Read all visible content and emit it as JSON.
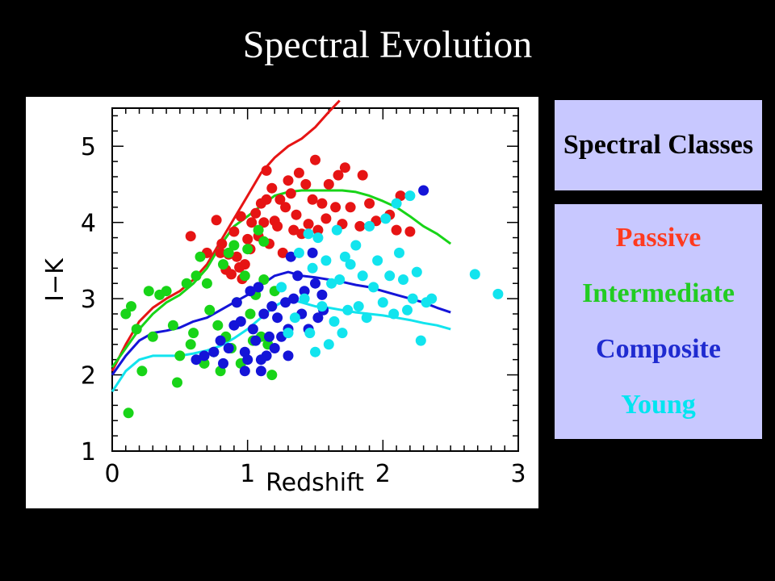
{
  "slide": {
    "title": "Spectral Evolution"
  },
  "legend": {
    "header": "Spectral Classes",
    "items": [
      {
        "label": "Passive",
        "color": "#ff3a1f"
      },
      {
        "label": "Intermediate",
        "color": "#22cc22"
      },
      {
        "label": "Composite",
        "color": "#1f2bd0"
      },
      {
        "label": "Young",
        "color": "#00e5f0"
      }
    ]
  },
  "chart_data": {
    "type": "scatter",
    "xlabel": "Redshift",
    "ylabel": "I−K",
    "xlim": [
      0,
      3
    ],
    "ylim": [
      1,
      5.5
    ],
    "xticks": [
      0,
      1,
      2,
      3
    ],
    "yticks": [
      1,
      2,
      3,
      4,
      5
    ],
    "colors": {
      "Passive": "#e61414",
      "Intermediate": "#18d418",
      "Composite": "#1414d8",
      "Young": "#12e4ee"
    },
    "series": [
      {
        "name": "Passive",
        "points": [
          [
            0.77,
            4.03
          ],
          [
            0.8,
            3.6
          ],
          [
            0.81,
            3.72
          ],
          [
            0.84,
            3.38
          ],
          [
            0.86,
            3.58
          ],
          [
            0.88,
            3.32
          ],
          [
            0.9,
            3.88
          ],
          [
            0.92,
            3.55
          ],
          [
            0.94,
            3.41
          ],
          [
            0.96,
            3.26
          ],
          [
            0.98,
            3.45
          ],
          [
            1.0,
            3.78
          ],
          [
            1.02,
            3.65
          ],
          [
            1.03,
            4.0
          ],
          [
            1.06,
            4.12
          ],
          [
            1.08,
            3.82
          ],
          [
            1.1,
            4.25
          ],
          [
            1.12,
            4.0
          ],
          [
            1.14,
            4.3
          ],
          [
            1.16,
            3.72
          ],
          [
            1.18,
            4.45
          ],
          [
            1.2,
            4.02
          ],
          [
            1.22,
            3.95
          ],
          [
            1.24,
            4.3
          ],
          [
            1.26,
            3.6
          ],
          [
            1.28,
            4.2
          ],
          [
            1.3,
            4.55
          ],
          [
            1.32,
            4.38
          ],
          [
            1.34,
            3.9
          ],
          [
            1.36,
            4.1
          ],
          [
            1.38,
            4.65
          ],
          [
            1.4,
            3.85
          ],
          [
            1.43,
            4.5
          ],
          [
            1.45,
            3.98
          ],
          [
            1.48,
            4.3
          ],
          [
            1.5,
            4.82
          ],
          [
            1.52,
            3.9
          ],
          [
            1.55,
            4.25
          ],
          [
            1.58,
            4.05
          ],
          [
            1.6,
            4.5
          ],
          [
            1.65,
            4.2
          ],
          [
            1.7,
            3.98
          ],
          [
            1.76,
            4.2
          ],
          [
            1.83,
            3.95
          ],
          [
            1.9,
            4.25
          ],
          [
            1.95,
            4.02
          ],
          [
            2.05,
            4.1
          ],
          [
            2.1,
            3.9
          ],
          [
            2.13,
            4.35
          ],
          [
            2.2,
            3.88
          ],
          [
            1.14,
            4.68
          ],
          [
            1.67,
            4.62
          ],
          [
            1.85,
            4.62
          ],
          [
            0.58,
            3.82
          ],
          [
            0.7,
            3.6
          ],
          [
            0.95,
            4.08
          ],
          [
            1.72,
            4.72
          ]
        ]
      },
      {
        "name": "Intermediate",
        "points": [
          [
            0.12,
            1.5
          ],
          [
            0.1,
            2.8
          ],
          [
            0.14,
            2.9
          ],
          [
            0.18,
            2.6
          ],
          [
            0.22,
            2.05
          ],
          [
            0.27,
            3.1
          ],
          [
            0.3,
            2.5
          ],
          [
            0.35,
            3.05
          ],
          [
            0.4,
            3.1
          ],
          [
            0.45,
            2.65
          ],
          [
            0.48,
            1.9
          ],
          [
            0.5,
            2.25
          ],
          [
            0.55,
            3.2
          ],
          [
            0.58,
            2.4
          ],
          [
            0.6,
            2.55
          ],
          [
            0.62,
            3.3
          ],
          [
            0.65,
            3.55
          ],
          [
            0.68,
            2.15
          ],
          [
            0.7,
            3.2
          ],
          [
            0.72,
            2.85
          ],
          [
            0.75,
            2.3
          ],
          [
            0.78,
            2.65
          ],
          [
            0.8,
            2.05
          ],
          [
            0.82,
            3.45
          ],
          [
            0.84,
            2.5
          ],
          [
            0.86,
            3.6
          ],
          [
            0.88,
            2.35
          ],
          [
            0.9,
            3.7
          ],
          [
            0.92,
            2.95
          ],
          [
            0.95,
            2.15
          ],
          [
            0.98,
            3.3
          ],
          [
            1.0,
            3.65
          ],
          [
            1.02,
            2.8
          ],
          [
            1.04,
            2.45
          ],
          [
            1.06,
            3.05
          ],
          [
            1.08,
            3.9
          ],
          [
            1.1,
            2.5
          ],
          [
            1.12,
            3.25
          ],
          [
            1.15,
            2.4
          ],
          [
            1.18,
            2.0
          ],
          [
            1.2,
            3.1
          ],
          [
            1.12,
            3.75
          ]
        ]
      },
      {
        "name": "Composite",
        "points": [
          [
            0.62,
            2.2
          ],
          [
            0.68,
            2.25
          ],
          [
            0.75,
            2.3
          ],
          [
            0.8,
            2.45
          ],
          [
            0.82,
            2.15
          ],
          [
            0.86,
            2.35
          ],
          [
            0.9,
            2.65
          ],
          [
            0.92,
            2.95
          ],
          [
            0.95,
            2.7
          ],
          [
            0.98,
            2.3
          ],
          [
            1.0,
            2.2
          ],
          [
            1.02,
            3.1
          ],
          [
            1.04,
            2.6
          ],
          [
            1.06,
            2.45
          ],
          [
            1.08,
            3.15
          ],
          [
            1.1,
            2.2
          ],
          [
            1.12,
            2.8
          ],
          [
            1.14,
            2.25
          ],
          [
            1.16,
            2.5
          ],
          [
            1.18,
            2.9
          ],
          [
            1.2,
            2.35
          ],
          [
            1.22,
            2.75
          ],
          [
            1.25,
            2.5
          ],
          [
            1.28,
            2.95
          ],
          [
            1.3,
            2.6
          ],
          [
            1.32,
            3.55
          ],
          [
            1.34,
            3.0
          ],
          [
            1.37,
            3.3
          ],
          [
            1.4,
            2.8
          ],
          [
            1.42,
            3.1
          ],
          [
            1.45,
            2.6
          ],
          [
            1.48,
            3.6
          ],
          [
            1.5,
            3.2
          ],
          [
            1.52,
            2.75
          ],
          [
            1.55,
            3.05
          ],
          [
            1.3,
            2.25
          ],
          [
            0.98,
            2.05
          ],
          [
            1.56,
            2.85
          ],
          [
            2.3,
            4.42
          ],
          [
            1.1,
            2.05
          ]
        ]
      },
      {
        "name": "Young",
        "points": [
          [
            1.25,
            3.15
          ],
          [
            1.3,
            2.55
          ],
          [
            1.35,
            2.75
          ],
          [
            1.38,
            3.6
          ],
          [
            1.42,
            3.0
          ],
          [
            1.46,
            2.55
          ],
          [
            1.48,
            3.4
          ],
          [
            1.5,
            2.3
          ],
          [
            1.52,
            3.8
          ],
          [
            1.55,
            2.9
          ],
          [
            1.58,
            3.5
          ],
          [
            1.6,
            2.4
          ],
          [
            1.62,
            3.2
          ],
          [
            1.64,
            2.7
          ],
          [
            1.66,
            3.9
          ],
          [
            1.68,
            3.25
          ],
          [
            1.7,
            2.55
          ],
          [
            1.72,
            3.55
          ],
          [
            1.74,
            2.85
          ],
          [
            1.76,
            3.45
          ],
          [
            1.8,
            3.7
          ],
          [
            1.82,
            2.9
          ],
          [
            1.85,
            3.3
          ],
          [
            1.88,
            2.75
          ],
          [
            1.9,
            3.95
          ],
          [
            1.93,
            3.15
          ],
          [
            1.96,
            3.5
          ],
          [
            2.0,
            2.95
          ],
          [
            2.02,
            4.05
          ],
          [
            2.05,
            3.3
          ],
          [
            2.08,
            2.8
          ],
          [
            2.1,
            4.25
          ],
          [
            2.12,
            3.6
          ],
          [
            2.15,
            3.25
          ],
          [
            2.18,
            2.85
          ],
          [
            2.2,
            4.35
          ],
          [
            2.22,
            3.0
          ],
          [
            2.25,
            3.35
          ],
          [
            2.28,
            2.45
          ],
          [
            2.32,
            2.95
          ],
          [
            2.36,
            3.0
          ],
          [
            2.68,
            3.32
          ],
          [
            2.85,
            3.06
          ],
          [
            1.45,
            3.85
          ]
        ]
      }
    ],
    "curves": [
      {
        "name": "Passive",
        "points": [
          [
            0.0,
            2.05
          ],
          [
            0.1,
            2.4
          ],
          [
            0.2,
            2.7
          ],
          [
            0.3,
            2.88
          ],
          [
            0.4,
            3.0
          ],
          [
            0.5,
            3.1
          ],
          [
            0.6,
            3.25
          ],
          [
            0.7,
            3.45
          ],
          [
            0.8,
            3.75
          ],
          [
            0.9,
            4.05
          ],
          [
            1.0,
            4.35
          ],
          [
            1.1,
            4.65
          ],
          [
            1.2,
            4.85
          ],
          [
            1.3,
            5.0
          ],
          [
            1.4,
            5.1
          ],
          [
            1.5,
            5.25
          ],
          [
            1.6,
            5.45
          ],
          [
            1.68,
            5.6
          ]
        ]
      },
      {
        "name": "Intermediate",
        "points": [
          [
            0.0,
            2.1
          ],
          [
            0.1,
            2.35
          ],
          [
            0.2,
            2.6
          ],
          [
            0.3,
            2.8
          ],
          [
            0.4,
            2.95
          ],
          [
            0.5,
            3.05
          ],
          [
            0.6,
            3.2
          ],
          [
            0.7,
            3.4
          ],
          [
            0.8,
            3.7
          ],
          [
            0.9,
            3.95
          ],
          [
            1.0,
            4.08
          ],
          [
            1.1,
            4.22
          ],
          [
            1.2,
            4.35
          ],
          [
            1.3,
            4.4
          ],
          [
            1.4,
            4.42
          ],
          [
            1.5,
            4.42
          ],
          [
            1.6,
            4.42
          ],
          [
            1.7,
            4.42
          ],
          [
            1.8,
            4.4
          ],
          [
            1.9,
            4.35
          ],
          [
            2.0,
            4.28
          ],
          [
            2.1,
            4.2
          ],
          [
            2.2,
            4.08
          ],
          [
            2.3,
            3.95
          ],
          [
            2.4,
            3.85
          ],
          [
            2.5,
            3.72
          ]
        ]
      },
      {
        "name": "Composite",
        "points": [
          [
            0.0,
            2.0
          ],
          [
            0.1,
            2.25
          ],
          [
            0.2,
            2.45
          ],
          [
            0.3,
            2.55
          ],
          [
            0.4,
            2.58
          ],
          [
            0.5,
            2.62
          ],
          [
            0.6,
            2.7
          ],
          [
            0.7,
            2.75
          ],
          [
            0.8,
            2.85
          ],
          [
            0.9,
            2.95
          ],
          [
            1.0,
            3.05
          ],
          [
            1.1,
            3.18
          ],
          [
            1.2,
            3.3
          ],
          [
            1.3,
            3.35
          ],
          [
            1.4,
            3.3
          ],
          [
            1.5,
            3.28
          ],
          [
            1.6,
            3.25
          ],
          [
            1.7,
            3.22
          ],
          [
            1.8,
            3.18
          ],
          [
            1.9,
            3.15
          ],
          [
            2.0,
            3.1
          ],
          [
            2.1,
            3.05
          ],
          [
            2.2,
            3.0
          ],
          [
            2.3,
            2.95
          ],
          [
            2.4,
            2.88
          ],
          [
            2.5,
            2.82
          ]
        ]
      },
      {
        "name": "Young",
        "points": [
          [
            0.0,
            1.78
          ],
          [
            0.1,
            2.05
          ],
          [
            0.2,
            2.2
          ],
          [
            0.3,
            2.25
          ],
          [
            0.4,
            2.25
          ],
          [
            0.5,
            2.25
          ],
          [
            0.6,
            2.28
          ],
          [
            0.7,
            2.32
          ],
          [
            0.8,
            2.38
          ],
          [
            0.9,
            2.48
          ],
          [
            1.0,
            2.6
          ],
          [
            1.1,
            2.75
          ],
          [
            1.2,
            2.9
          ],
          [
            1.3,
            3.0
          ],
          [
            1.4,
            2.95
          ],
          [
            1.5,
            2.9
          ],
          [
            1.6,
            2.88
          ],
          [
            1.7,
            2.85
          ],
          [
            1.8,
            2.82
          ],
          [
            1.9,
            2.8
          ],
          [
            2.0,
            2.78
          ],
          [
            2.1,
            2.75
          ],
          [
            2.2,
            2.72
          ],
          [
            2.3,
            2.68
          ],
          [
            2.4,
            2.65
          ],
          [
            2.5,
            2.6
          ]
        ]
      }
    ]
  }
}
